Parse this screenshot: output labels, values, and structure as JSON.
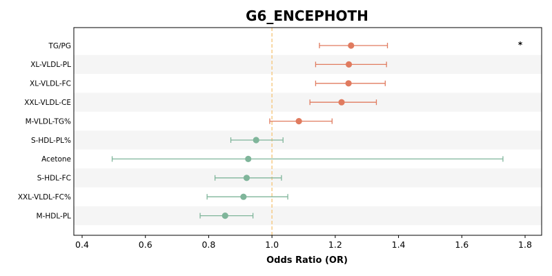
{
  "chart_data": {
    "type": "scatter",
    "subtype": "forest-plot",
    "title": "G6_ENCEPHOTH",
    "xlabel": "Odds Ratio (OR)",
    "ylabel": "",
    "xlim": [
      0.38,
      1.85
    ],
    "xticks": [
      "0.4",
      "0.6",
      "0.8",
      "1.0",
      "1.2",
      "1.4",
      "1.6",
      "1.8"
    ],
    "reference_line": 1.0,
    "alternating_row_shading": true,
    "grid": false,
    "colors": {
      "positive": "#e07b5f",
      "negative": "#7fb59a",
      "reference": "#f5c77e",
      "row_shade": "#f5f5f5"
    },
    "rows": [
      {
        "label": "TG/PG",
        "or": 1.25,
        "lower": 1.15,
        "upper": 1.365,
        "annotation": "*"
      },
      {
        "label": "XL-VLDL-PL",
        "or": 1.243,
        "lower": 1.138,
        "upper": 1.362,
        "annotation": ""
      },
      {
        "label": "XL-VLDL-FC",
        "or": 1.242,
        "lower": 1.138,
        "upper": 1.358,
        "annotation": ""
      },
      {
        "label": "XXL-VLDL-CE",
        "or": 1.22,
        "lower": 1.12,
        "upper": 1.33,
        "annotation": ""
      },
      {
        "label": "M-VLDL-TG%",
        "or": 1.085,
        "lower": 0.993,
        "upper": 1.19,
        "annotation": ""
      },
      {
        "label": "S-HDL-PL%",
        "or": 0.95,
        "lower": 0.87,
        "upper": 1.035,
        "annotation": ""
      },
      {
        "label": "Acetone",
        "or": 0.925,
        "lower": 0.495,
        "upper": 1.73,
        "annotation": ""
      },
      {
        "label": "S-HDL-FC",
        "or": 0.92,
        "lower": 0.82,
        "upper": 1.03,
        "annotation": ""
      },
      {
        "label": "XXL-VLDL-FC%",
        "or": 0.91,
        "lower": 0.795,
        "upper": 1.05,
        "annotation": ""
      },
      {
        "label": "M-HDL-PL",
        "or": 0.852,
        "lower": 0.773,
        "upper": 0.94,
        "annotation": ""
      }
    ]
  }
}
